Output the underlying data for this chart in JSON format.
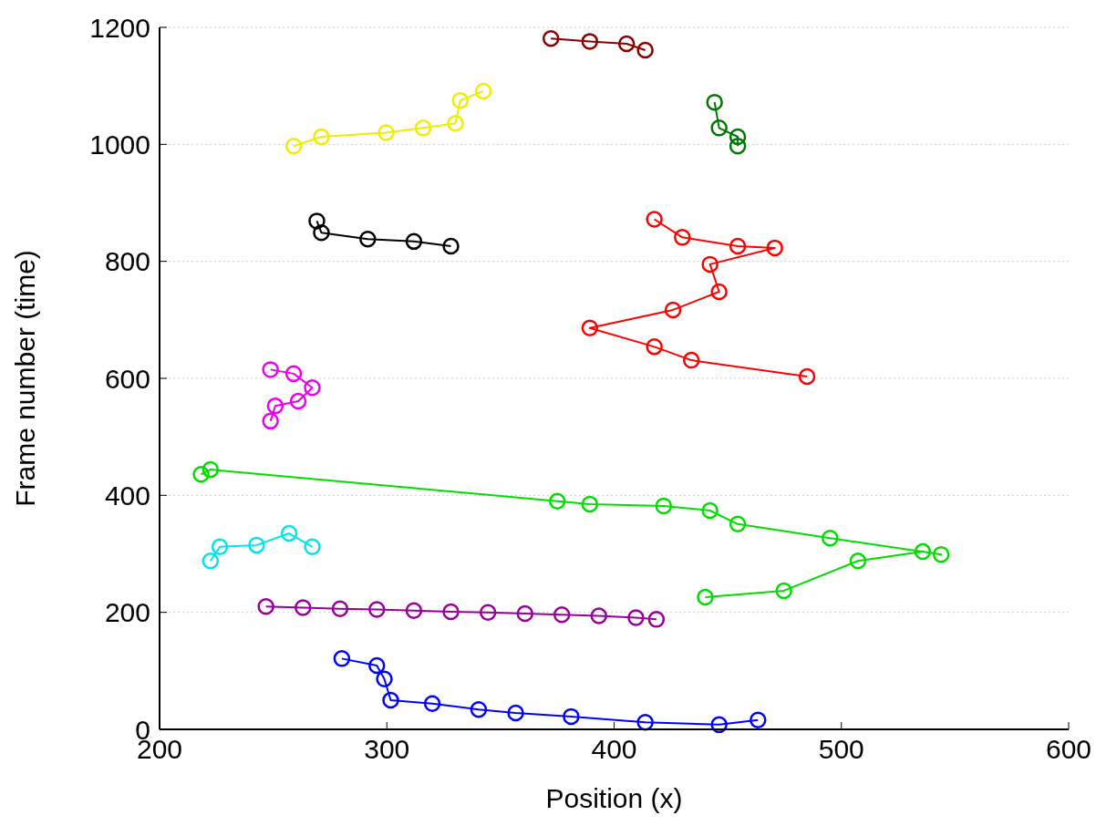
{
  "chart_data": {
    "type": "line",
    "xlabel": "Position (x)",
    "ylabel": "Frame number (time)",
    "xlim": [
      200,
      600
    ],
    "xticks": [
      200,
      300,
      400,
      500,
      600
    ],
    "ylim": [
      0,
      1200
    ],
    "yticks": [
      0,
      200,
      400,
      600,
      800,
      1000,
      1200
    ],
    "grid": "y",
    "marker": "circle",
    "line_style": "solid",
    "series": [
      {
        "color": "#0000ff",
        "x": [
          280.2,
          295.6,
          298.9,
          301.7,
          320,
          340.4,
          356.7,
          381.1,
          413.7,
          446.2,
          463.3
        ],
        "values": [
          121,
          109,
          86,
          50,
          44,
          34,
          28,
          22,
          12,
          8,
          16
        ]
      },
      {
        "color": "#990099",
        "x": [
          246.8,
          263.1,
          279.4,
          295.6,
          311.9,
          328.2,
          344.5,
          360.8,
          377,
          393.3,
          409.6,
          418.6
        ],
        "values": [
          210,
          208,
          206,
          205,
          203,
          201,
          200,
          198,
          196,
          194,
          191,
          188
        ]
      },
      {
        "color": "#00e5e5",
        "x": [
          222.4,
          226.5,
          242.7,
          257,
          267.2
        ],
        "values": [
          288,
          312,
          315,
          335,
          312
        ]
      },
      {
        "color": "#00dd00",
        "x": [
          440.1,
          474.7,
          507.3,
          535.8,
          543.9,
          495,
          454.4,
          442.2,
          421.8,
          389.3,
          375,
          222.4,
          218.3
        ],
        "values": [
          226,
          237,
          288,
          304,
          299,
          327,
          351,
          374,
          382,
          385,
          390,
          444,
          436
        ]
      },
      {
        "color": "#ee00ee",
        "x": [
          248.8,
          250.9,
          261,
          267.2,
          259,
          248.8
        ],
        "values": [
          527,
          553,
          561,
          584,
          608,
          615
        ]
      },
      {
        "color": "#ff0000",
        "x": [
          484.9,
          434,
          417.7,
          389.3,
          425.9,
          446.2,
          442.2,
          470.7,
          454.4,
          430,
          417.7
        ],
        "values": [
          603,
          631,
          654,
          686,
          717,
          748,
          795,
          823,
          826,
          841,
          872
        ]
      },
      {
        "color": "#000000",
        "x": [
          328.2,
          311.9,
          291.6,
          271.2,
          269.2
        ],
        "values": [
          826,
          834,
          838,
          849,
          869
        ]
      },
      {
        "color": "#eeee00",
        "x": [
          259,
          271.2,
          299.7,
          316,
          330.2,
          332.3,
          342.5
        ],
        "values": [
          997,
          1013,
          1020,
          1028,
          1036,
          1075,
          1091
        ]
      },
      {
        "color": "#007700",
        "x": [
          454.4,
          454.4,
          446.2,
          444.2
        ],
        "values": [
          997,
          1013,
          1028,
          1072
        ]
      },
      {
        "color": "#880000",
        "x": [
          413.7,
          405.5,
          389.3,
          372.2
        ],
        "values": [
          1161,
          1172,
          1176,
          1181
        ]
      }
    ]
  }
}
